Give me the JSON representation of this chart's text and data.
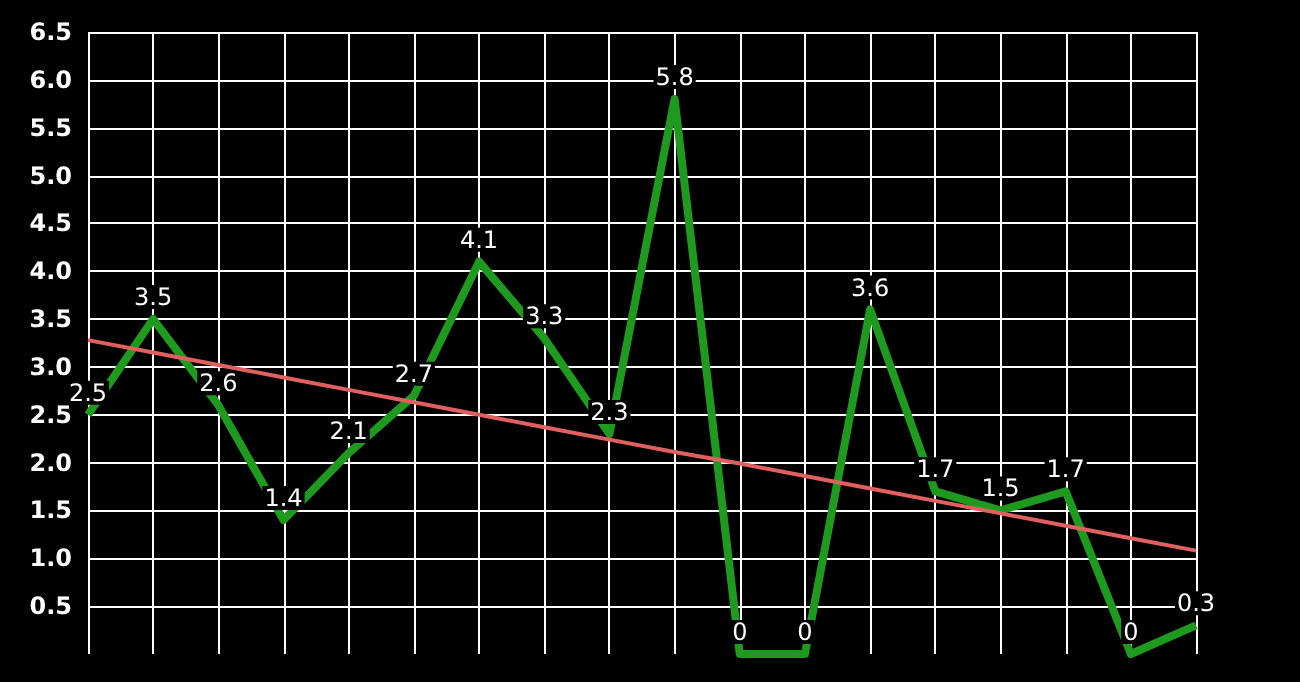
{
  "chart_data": {
    "type": "line",
    "categories": [
      null,
      null,
      null,
      null,
      null,
      null,
      null,
      null,
      null,
      null,
      null,
      null,
      null,
      null,
      null,
      null,
      null,
      null
    ],
    "series": [
      {
        "color": "#1e9a1e",
        "values": [
          2.5,
          3.5,
          2.6,
          1.4,
          2.1,
          2.7,
          4.1,
          3.3,
          2.3,
          5.8,
          0,
          0,
          3.6,
          1.7,
          1.5,
          1.7,
          0,
          0.3
        ],
        "data_labels": true
      },
      {
        "color": "#e06060",
        "values": [
          3.28,
          3.15,
          3.02,
          2.89,
          2.76,
          2.63,
          2.5,
          2.37,
          2.24,
          2.11,
          1.99,
          1.86,
          1.73,
          1.6,
          1.47,
          1.34,
          1.21,
          1.08
        ]
      }
    ],
    "ylim": [
      0,
      6.5
    ],
    "yticks": [
      0.5,
      {
        "value": 1,
        "label": "1.0"
      },
      1.5,
      {
        "value": 2,
        "label": "2.0"
      },
      2.5,
      {
        "value": 3,
        "label": "3.0"
      },
      3.5,
      {
        "value": 4,
        "label": "4.0"
      },
      4.5,
      {
        "value": 5,
        "label": "5.0"
      },
      5.5,
      {
        "value": 6,
        "label": "6.0"
      },
      6.5
    ],
    "tick_labels": "y",
    "grid": true,
    "marker": "none",
    "line_style": "solid"
  }
}
